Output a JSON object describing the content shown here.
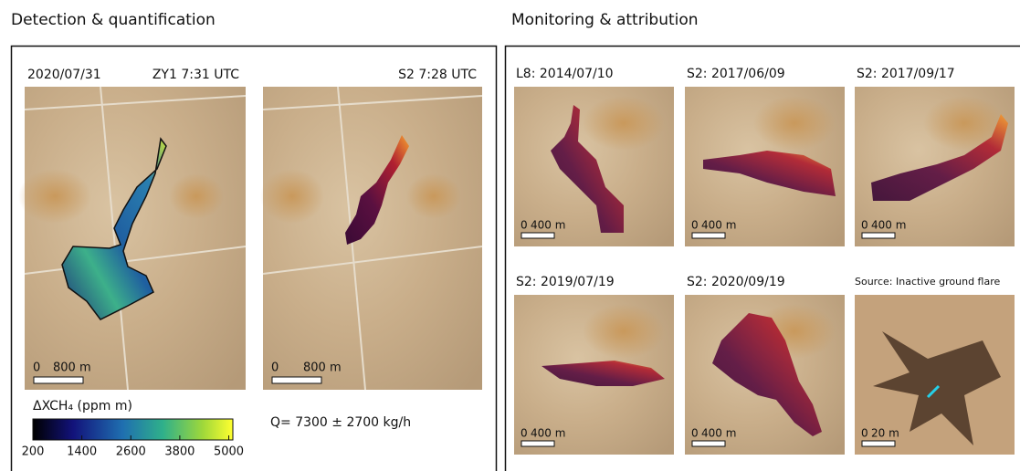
{
  "detection": {
    "title": "Detection & quantification",
    "panels": [
      {
        "labels": [
          "2020/07/31",
          "ZY1 7:31 UTC"
        ],
        "scale": [
          "0",
          "800 m"
        ]
      },
      {
        "labels": [
          "S2 7:28 UTC"
        ],
        "scale": [
          "0",
          "800 m"
        ]
      }
    ],
    "colorbar": {
      "label": "ΔXCH₄ (ppm m)",
      "lim": [
        200,
        5100
      ],
      "ticks": [
        200,
        1400,
        2600,
        3800,
        5000
      ]
    },
    "emission": "Q= 7300 ± 2700 kg/h"
  },
  "monitoring": {
    "title": "Monitoring & attribution",
    "panels": [
      {
        "label": "L8: 2014/07/10",
        "scale": [
          "0",
          "400 m"
        ]
      },
      {
        "label": "S2: 2017/06/09",
        "scale": [
          "0",
          "400 m"
        ]
      },
      {
        "label": "S2: 2017/09/17",
        "scale": [
          "0",
          "400 m"
        ]
      },
      {
        "label": "S2: 2019/07/19",
        "scale": [
          "0",
          "400 m"
        ]
      },
      {
        "label": "S2: 2020/09/19",
        "scale": [
          "0",
          "400 m"
        ]
      },
      {
        "label": "Source: Inactive ground flare",
        "scale": [
          "0",
          "20 m"
        ]
      }
    ]
  }
}
